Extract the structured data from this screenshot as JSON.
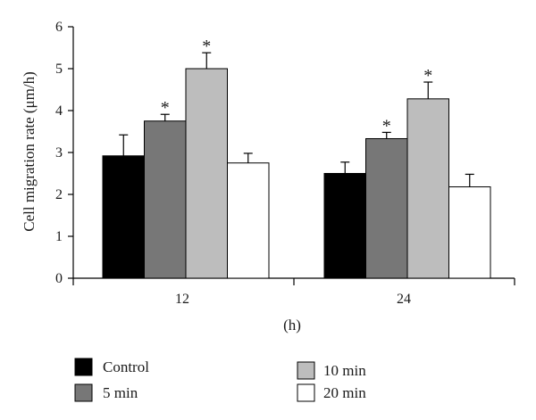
{
  "chart_data": {
    "type": "bar",
    "categories": [
      "12",
      "24"
    ],
    "series": [
      {
        "name": "Control",
        "color": "#000000",
        "values": [
          2.92,
          2.5
        ],
        "errors": [
          0.5,
          0.27
        ],
        "significant": [
          false,
          false
        ]
      },
      {
        "name": "5 min",
        "color": "#777777",
        "values": [
          3.75,
          3.33
        ],
        "errors": [
          0.16,
          0.15
        ],
        "significant": [
          true,
          true
        ]
      },
      {
        "name": "10 min",
        "color": "#bdbdbd",
        "values": [
          5.0,
          4.28
        ],
        "errors": [
          0.38,
          0.4
        ],
        "significant": [
          true,
          true
        ]
      },
      {
        "name": "20 min",
        "color": "#ffffff",
        "values": [
          2.75,
          2.18
        ],
        "errors": [
          0.23,
          0.3
        ],
        "significant": [
          false,
          false
        ]
      }
    ],
    "significance_marker": "*",
    "ylabel": "Cell migration rate (μm/h)",
    "xlabel": "(h)",
    "ylim": [
      0,
      6
    ],
    "yticks": [
      "0",
      "1",
      "2",
      "3",
      "4",
      "5",
      "6"
    ],
    "grid": false,
    "legend_position": "bottom"
  }
}
